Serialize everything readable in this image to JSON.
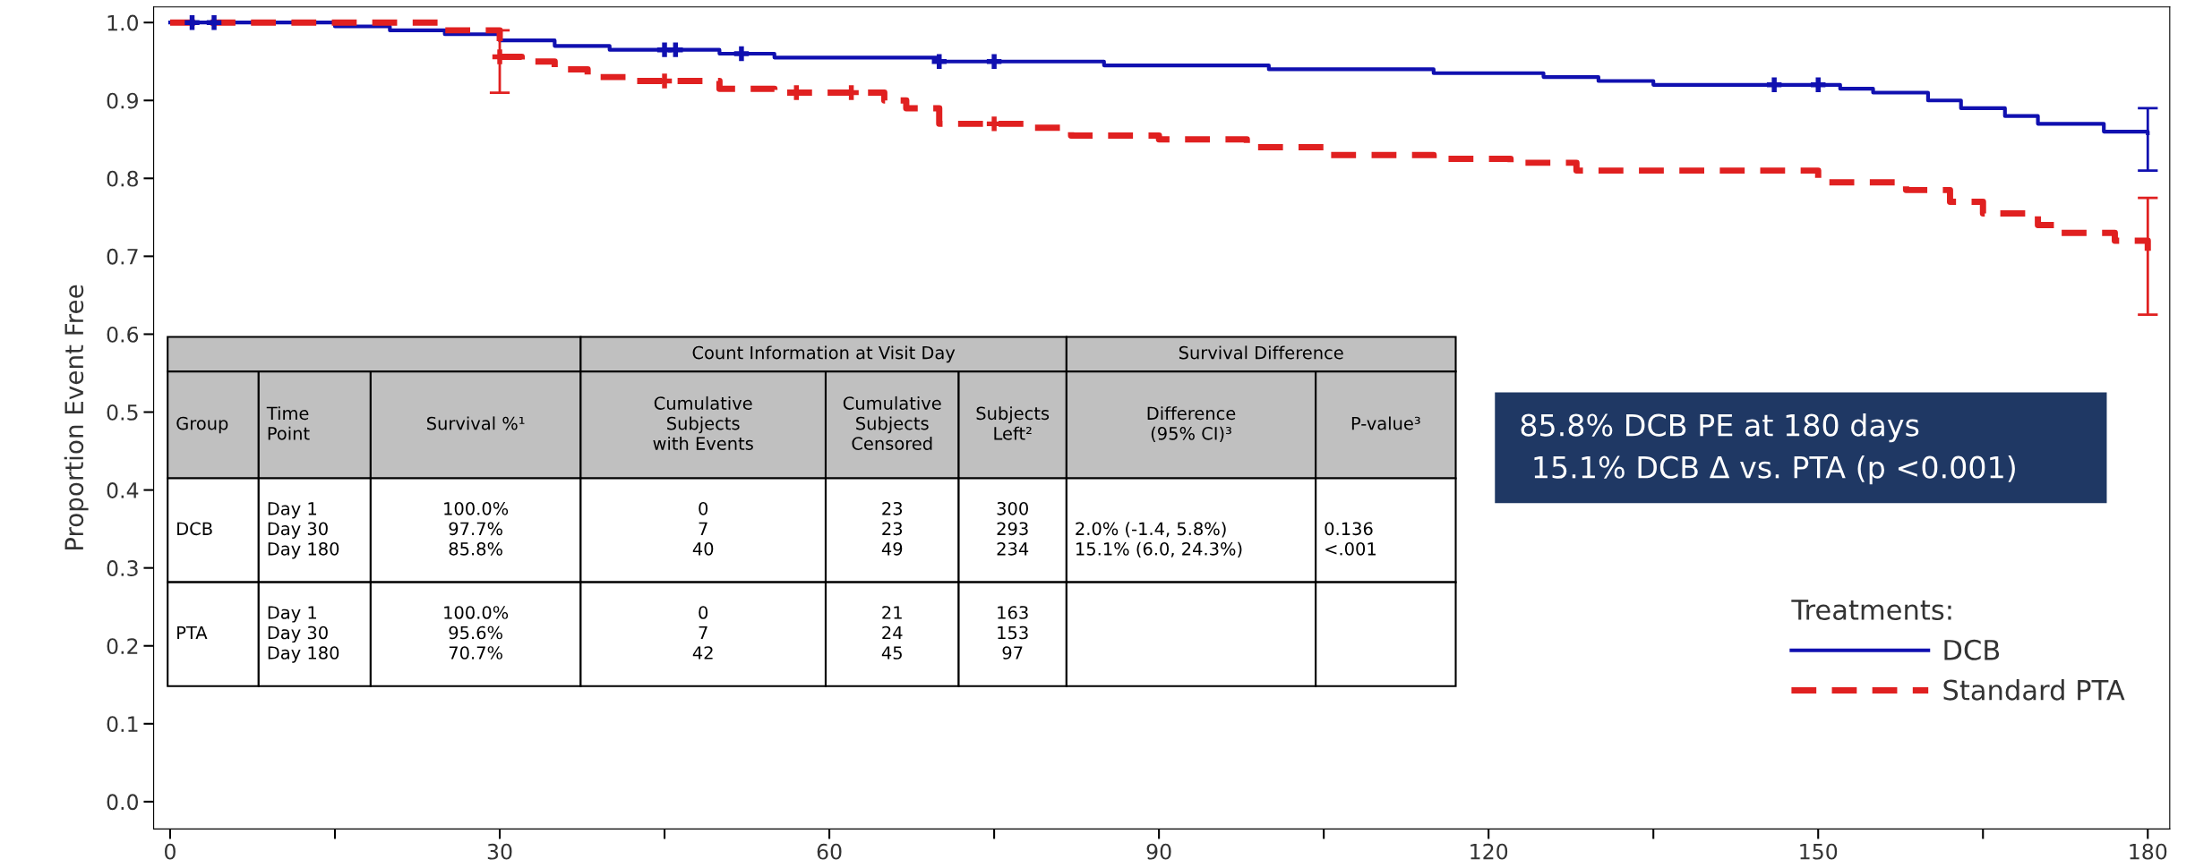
{
  "chart_data": {
    "type": "step",
    "ylabel": "Proportion Event Free",
    "legend_title": "Treatments:",
    "legend": "bottom right",
    "grid": false,
    "xlim": [
      -1.5,
      182
    ],
    "ylim": [
      -0.035,
      1.02
    ],
    "xticks": [
      0,
      {
        "value": 15,
        "label": null
      },
      30,
      {
        "value": 45,
        "label": null
      },
      60,
      {
        "value": 75,
        "label": null
      },
      90,
      {
        "value": 105,
        "label": null
      },
      120,
      {
        "value": 135,
        "label": null
      },
      150,
      {
        "value": 165,
        "label": null
      },
      180
    ],
    "yticks": [
      {
        "value": 0,
        "label": "0.0"
      },
      {
        "value": 0.1,
        "label": "0.1"
      },
      {
        "value": 0.2,
        "label": "0.2"
      },
      {
        "value": 0.3,
        "label": "0.3"
      },
      {
        "value": 0.4,
        "label": "0.4"
      },
      {
        "value": 0.5,
        "label": "0.5"
      },
      {
        "value": 0.6,
        "label": "0.6"
      },
      {
        "value": 0.7,
        "label": "0.7"
      },
      {
        "value": 0.8,
        "label": "0.8"
      },
      {
        "value": 0.9,
        "label": "0.9"
      },
      {
        "value": 1,
        "label": "1.0"
      }
    ],
    "series": [
      {
        "name": "DCB",
        "color": "#1010b0",
        "line_style": "solid",
        "marker": "none",
        "x": [
          0,
          10,
          15,
          20,
          25,
          30,
          35,
          40,
          50,
          55,
          70,
          85,
          100,
          115,
          125,
          130,
          135,
          152,
          155,
          160,
          163,
          167,
          170,
          176,
          180
        ],
        "values": [
          1,
          1,
          0.995,
          0.99,
          0.985,
          0.977,
          0.97,
          0.965,
          0.96,
          0.955,
          0.95,
          0.945,
          0.94,
          0.935,
          0.93,
          0.925,
          0.92,
          0.915,
          0.91,
          0.9,
          0.89,
          0.88,
          0.87,
          0.86,
          0.858
        ],
        "errors": [
          null,
          null,
          null,
          null,
          null,
          null,
          null,
          null,
          null,
          null,
          null,
          null,
          null,
          null,
          null,
          null,
          null,
          null,
          null,
          null,
          null,
          null,
          null,
          null,
          [
            0.81,
            0.89
          ]
        ]
      },
      {
        "name": "Standard PTA",
        "color": "#e02020",
        "line_style": "dashed",
        "marker": "none",
        "x": [
          0,
          25,
          30,
          32,
          35,
          38,
          42,
          50,
          55,
          65,
          67,
          70,
          78,
          82,
          90,
          98,
          105,
          115,
          122,
          128,
          150,
          158,
          162,
          165,
          170,
          172,
          177,
          180
        ],
        "values": [
          1,
          0.99,
          0.956,
          0.95,
          0.94,
          0.93,
          0.925,
          0.915,
          0.91,
          0.9,
          0.89,
          0.87,
          0.865,
          0.855,
          0.85,
          0.84,
          0.83,
          0.825,
          0.82,
          0.81,
          0.795,
          0.785,
          0.77,
          0.755,
          0.74,
          0.73,
          0.72,
          0.707
        ],
        "errors": [
          null,
          null,
          [
            0.91,
            0.99
          ],
          null,
          null,
          null,
          null,
          null,
          null,
          null,
          null,
          null,
          null,
          null,
          null,
          null,
          null,
          null,
          null,
          null,
          null,
          null,
          null,
          null,
          null,
          null,
          null,
          [
            0.625,
            0.775
          ]
        ]
      },
      {
        "type": "scatter",
        "color": "#1010b0",
        "marker": "cross",
        "x": [
          2,
          4,
          45,
          46,
          52,
          70,
          75,
          146,
          150
        ],
        "values": [
          1,
          1,
          0.965,
          0.965,
          0.96,
          0.95,
          0.95,
          0.92,
          0.92
        ]
      },
      {
        "type": "scatter",
        "color": "#e02020",
        "marker": "cross",
        "x": [
          30,
          45,
          57,
          62,
          75
        ],
        "values": [
          0.956,
          0.925,
          0.91,
          0.91,
          0.87
        ]
      }
    ],
    "annotations": [
      "Count Information at Visit Day",
      "Survival Difference",
      "Group",
      "Time\nPoint",
      "Survival %¹",
      "Cumulative\nSubjects\nwith Events",
      "Cumulative\nSubjects\nCensored",
      "Subjects\nLeft²",
      "Difference\n(95% CI)³",
      "P-value³",
      "DCB",
      "Day 1\nDay 30\nDay 180",
      "100.0%\n97.7%\n85.8%",
      "0\n7\n40",
      "23\n23\n49",
      "300\n293\n234",
      "\n2.0% (-1.4, 5.8%)\n15.1% (6.0, 24.3%)",
      "\n0.136\n<.001",
      "PTA",
      "Day 1\nDay 30\nDay 180",
      "100.0%\n95.6%\n70.7%",
      "0\n7\n42",
      "21\n24\n45",
      "163\n153\n97",
      "85.8% DCB PE at 180 days",
      "15.1% DCB Δ vs. PTA (p <0.001)"
    ]
  }
}
